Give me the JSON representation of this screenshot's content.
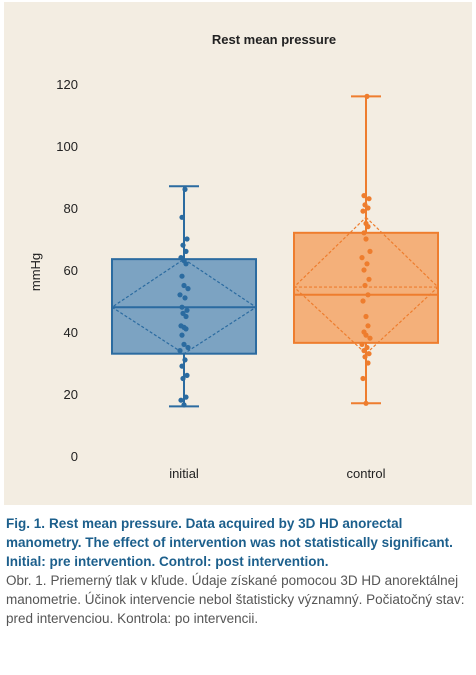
{
  "figure": {
    "caption_en_label": "Fig. 1.",
    "caption_en_text": "Rest mean pressure. Data acquired by 3D HD anorectal manometry. The effect of intervention was not statistically significant. Initial: pre intervention. Control: post intervention.",
    "caption_sk_label": "Obr. 1.",
    "caption_sk_text": "Priemerný tlak v kľude. Údaje získané pomocou 3D HD anorektálnej manometrie. Účinok intervencie nebol štatisticky významný. Počiatočný stav: pred intervenciou. Kontrola: po intervencii."
  },
  "colors": {
    "panel_bg": "#f3ede2",
    "initial_fill": "#7ca3c2",
    "initial_stroke": "#2b6ba0",
    "control_fill": "#f4b07a",
    "control_stroke": "#ee7d2e",
    "caption_en": "#1c5f8c",
    "caption_sk": "#555555"
  },
  "chart_data": {
    "type": "box",
    "title": "Rest mean pressure",
    "ylabel": "mmHg",
    "xlabel": "",
    "ylim": [
      0,
      120
    ],
    "yticks": [
      0,
      20,
      40,
      60,
      80,
      100,
      120
    ],
    "grid": false,
    "categories": [
      "initial",
      "control"
    ],
    "series": [
      {
        "category": "initial",
        "whisker_min": 16,
        "q1": 33,
        "median": 48,
        "mean": 48,
        "q3": 63.5,
        "whisker_max": 87,
        "sd_low": 33,
        "sd_high": 63.5,
        "points": [
          16.5,
          18,
          19,
          25,
          26,
          29,
          31,
          34,
          35,
          36,
          39,
          41,
          41.5,
          42,
          45,
          46,
          47,
          48,
          51,
          52,
          54,
          55,
          58,
          62,
          63,
          64,
          66,
          68,
          70,
          77,
          86
        ]
      },
      {
        "category": "control",
        "whisker_min": 17,
        "q1": 36.5,
        "median": 52,
        "mean": 54.5,
        "q3": 72,
        "whisker_max": 116,
        "sd_low": 33,
        "sd_high": 77,
        "points": [
          17,
          25,
          30,
          32,
          33,
          34,
          35,
          36,
          38,
          39,
          40,
          42,
          45,
          50,
          52,
          55,
          57,
          60,
          62,
          64,
          66,
          70,
          72,
          74,
          75,
          79,
          80,
          81,
          83,
          84,
          116
        ]
      }
    ]
  }
}
